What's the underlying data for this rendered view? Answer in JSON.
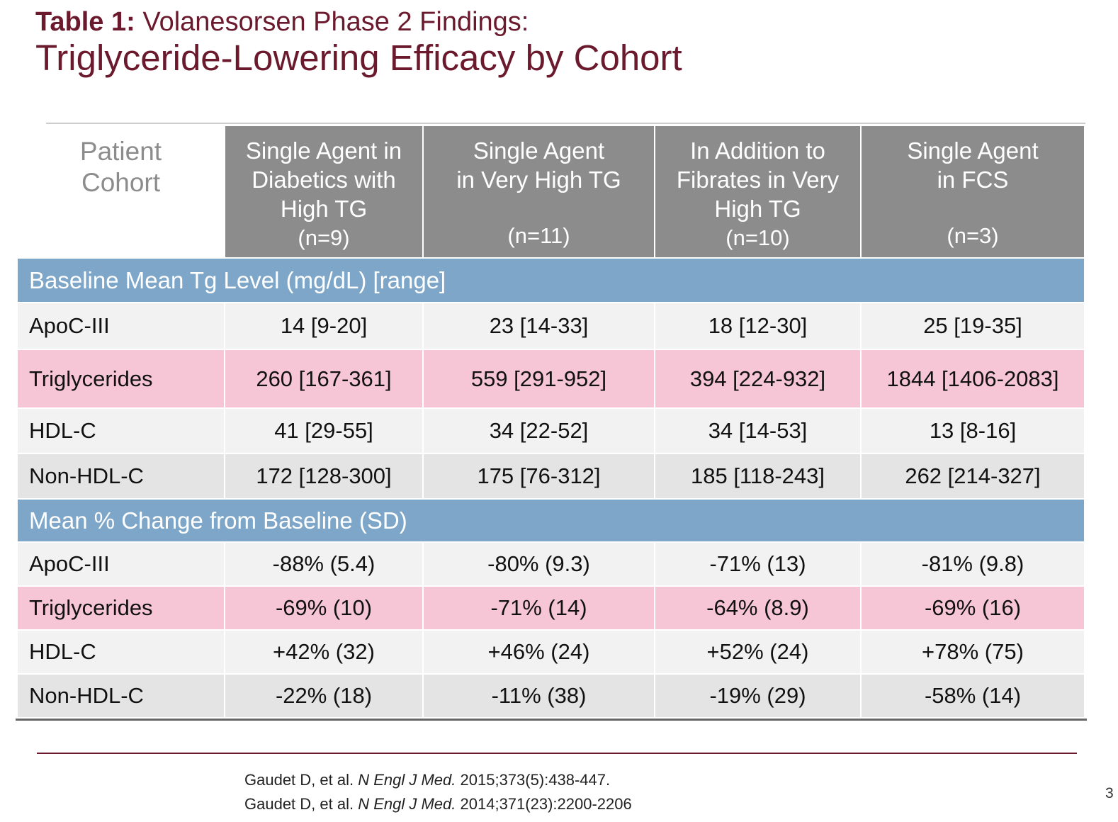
{
  "header": {
    "title_prefix": "Table 1:",
    "title_rest": "Volanesorsen Phase 2 Findings:",
    "subtitle": "Triglyceride-Lowering Efficacy by Cohort"
  },
  "table": {
    "corner": "Patient Cohort",
    "columns": [
      {
        "name_lines": [
          "Single Agent in",
          "Diabetics with",
          "High TG"
        ],
        "n": "(n=9)"
      },
      {
        "name_lines": [
          "Single Agent",
          "in Very High TG"
        ],
        "n": "(n=11)"
      },
      {
        "name_lines": [
          "In Addition to",
          "Fibrates in Very",
          "High TG"
        ],
        "n": "(n=10)"
      },
      {
        "name_lines": [
          "Single Agent",
          "in FCS"
        ],
        "n": "(n=3)"
      }
    ],
    "sections": [
      {
        "title": "Baseline Mean Tg Level (mg/dL) [range]",
        "rows": [
          [
            "ApoC-III",
            "14 [9-20]",
            "23 [14-33]",
            "18 [12-30]",
            "25 [19-35]"
          ],
          [
            "Triglycerides",
            "260 [167-361]",
            "559 [291-952]",
            "394 [224-932]",
            "1844 [1406-2083]"
          ],
          [
            "HDL-C",
            "41 [29-55]",
            "34 [22-52]",
            "34 [14-53]",
            "13 [8-16]"
          ],
          [
            "Non-HDL-C",
            "172 [128-300]",
            "175 [76-312]",
            "185 [118-243]",
            "262 [214-327]"
          ]
        ]
      },
      {
        "title": "Mean % Change from Baseline (SD)",
        "rows": [
          [
            "ApoC-III",
            "-88% (5.4)",
            "-80% (9.3)",
            "-71% (13)",
            "-81% (9.8)"
          ],
          [
            "Triglycerides",
            "-69% (10)",
            "-71% (14)",
            "-64% (8.9)",
            "-69% (16)"
          ],
          [
            "HDL-C",
            "+42% (32)",
            "+46% (24)",
            "+52% (24)",
            "+78% (75)"
          ],
          [
            "Non-HDL-C",
            "-22% (18)",
            "-11% (38)",
            "-19% (29)",
            "-58% (14)"
          ]
        ]
      }
    ]
  },
  "references": [
    {
      "author": "Gaudet D, et al.",
      "journal": "N Engl J Med.",
      "citation": "2015;373(5):438-447."
    },
    {
      "author": "Gaudet D, et al.",
      "journal": "N Engl J Med.",
      "citation": "2014;371(23):2200-2206"
    }
  ],
  "page_number": "3"
}
